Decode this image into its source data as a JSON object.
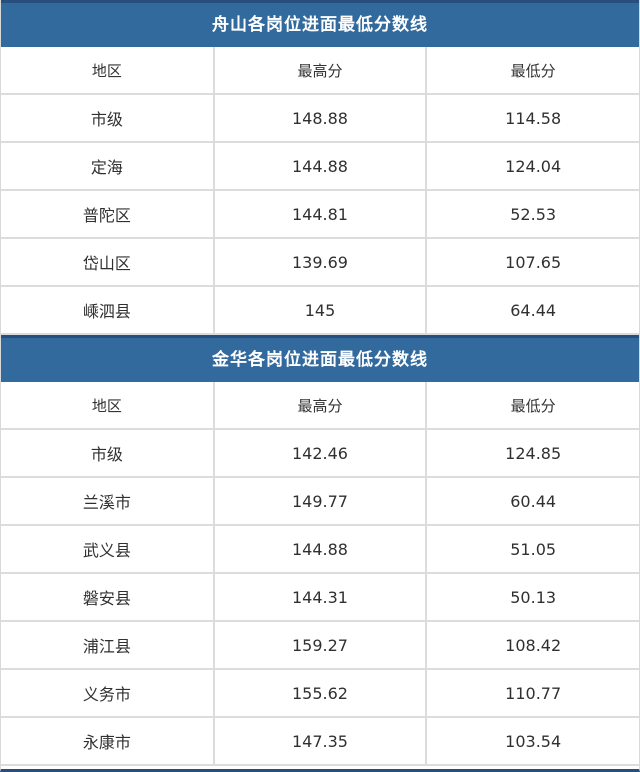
{
  "theme": {
    "header_blue": "#336a9e",
    "accent_navy": "#274e7d",
    "grid_gray": "#dcdcdc",
    "cell_text": "#303030",
    "title_text": "#ffffff"
  },
  "chart_data": [
    {
      "type": "table",
      "title": "舟山各岗位进面最低分数线",
      "columns": [
        "地区",
        "最高分",
        "最低分"
      ],
      "rows": [
        [
          "市级",
          "148.88",
          "114.58"
        ],
        [
          "定海",
          "144.88",
          "124.04"
        ],
        [
          "普陀区",
          "144.81",
          "52.53"
        ],
        [
          "岱山区",
          "139.69",
          "107.65"
        ],
        [
          "嵊泗县",
          "145",
          "64.44"
        ]
      ]
    },
    {
      "type": "table",
      "title": "金华各岗位进面最低分数线",
      "columns": [
        "地区",
        "最高分",
        "最低分"
      ],
      "rows": [
        [
          "市级",
          "142.46",
          "124.85"
        ],
        [
          "兰溪市",
          "149.77",
          "60.44"
        ],
        [
          "武义县",
          "144.88",
          "51.05"
        ],
        [
          "磐安县",
          "144.31",
          "50.13"
        ],
        [
          "浦江县",
          "159.27",
          "108.42"
        ],
        [
          "义务市",
          "155.62",
          "110.77"
        ],
        [
          "永康市",
          "147.35",
          "103.54"
        ]
      ]
    }
  ]
}
